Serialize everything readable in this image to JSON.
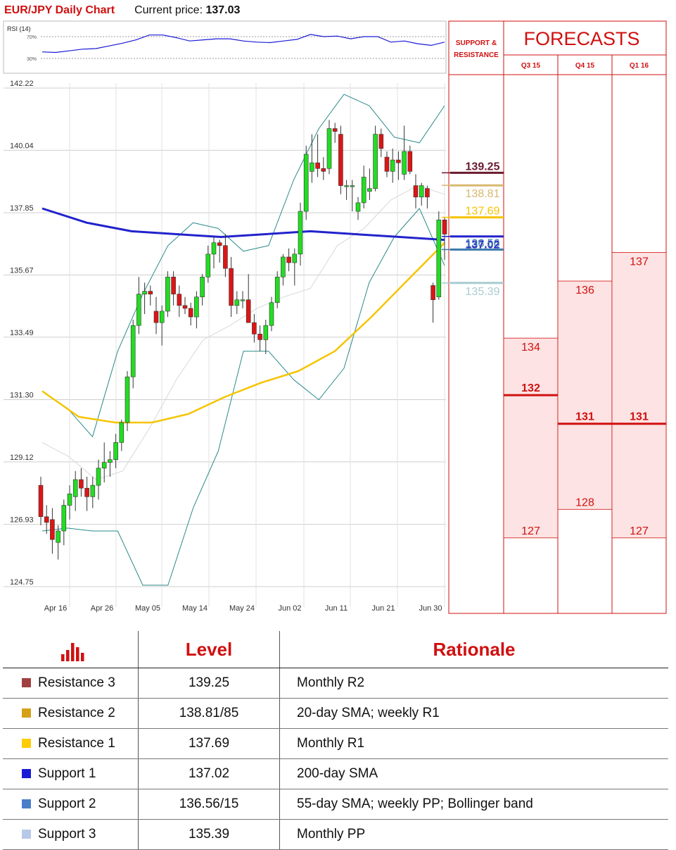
{
  "header": {
    "title": "EUR/JPY Daily Chart",
    "price_label": "Current price:",
    "price_value": "137.03"
  },
  "chart_data": [
    {
      "type": "line",
      "title": "RSI (14)",
      "yticks": [
        "70%",
        "30%"
      ],
      "series": [
        {
          "values": [
            42,
            41,
            44,
            47,
            48,
            53,
            58,
            64,
            73,
            73,
            68,
            62,
            64,
            66,
            66,
            62,
            60,
            59,
            62,
            65,
            74,
            70,
            71,
            66,
            70,
            70,
            60,
            62,
            57,
            54,
            60
          ]
        }
      ]
    },
    {
      "type": "candlestick",
      "title": "EUR/JPY Daily Chart",
      "x_ticks": [
        "Apr 16",
        "Apr 26",
        "May 05",
        "May 14",
        "May 24",
        "Jun 02",
        "Jun 11",
        "Jun 21",
        "Jun 30"
      ],
      "y_ticks": [
        "142.22",
        "140.04",
        "137.85",
        "135.67",
        "133.49",
        "131.30",
        "129.12",
        "126.93",
        "124.75"
      ],
      "ylim": [
        124.75,
        142.22
      ],
      "candles": [
        {
          "o": 128.3,
          "h": 128.6,
          "l": 126.9,
          "c": 127.2
        },
        {
          "o": 127.2,
          "h": 127.6,
          "l": 126.6,
          "c": 127.0
        },
        {
          "o": 127.1,
          "h": 127.5,
          "l": 125.9,
          "c": 126.4
        },
        {
          "o": 126.3,
          "h": 126.9,
          "l": 125.7,
          "c": 126.7
        },
        {
          "o": 126.7,
          "h": 127.8,
          "l": 126.2,
          "c": 127.6
        },
        {
          "o": 127.6,
          "h": 128.3,
          "l": 127.1,
          "c": 128.0
        },
        {
          "o": 127.9,
          "h": 128.8,
          "l": 127.4,
          "c": 128.5
        },
        {
          "o": 128.5,
          "h": 128.9,
          "l": 127.9,
          "c": 128.2
        },
        {
          "o": 128.2,
          "h": 128.6,
          "l": 127.4,
          "c": 127.9
        },
        {
          "o": 127.9,
          "h": 128.6,
          "l": 127.5,
          "c": 128.3
        },
        {
          "o": 128.3,
          "h": 129.2,
          "l": 127.8,
          "c": 128.9
        },
        {
          "o": 128.9,
          "h": 129.8,
          "l": 128.4,
          "c": 129.1
        },
        {
          "o": 129.1,
          "h": 129.5,
          "l": 128.6,
          "c": 129.2
        },
        {
          "o": 129.2,
          "h": 130.1,
          "l": 128.9,
          "c": 129.8
        },
        {
          "o": 129.8,
          "h": 130.6,
          "l": 129.5,
          "c": 130.5
        },
        {
          "o": 130.5,
          "h": 132.3,
          "l": 130.2,
          "c": 132.1
        },
        {
          "o": 132.1,
          "h": 134.1,
          "l": 131.7,
          "c": 133.9
        },
        {
          "o": 133.9,
          "h": 135.6,
          "l": 133.6,
          "c": 135.0
        },
        {
          "o": 135.0,
          "h": 135.4,
          "l": 134.3,
          "c": 135.1
        },
        {
          "o": 135.1,
          "h": 135.3,
          "l": 134.6,
          "c": 135.0
        },
        {
          "o": 134.4,
          "h": 134.9,
          "l": 133.6,
          "c": 134.0
        },
        {
          "o": 134.0,
          "h": 134.6,
          "l": 133.2,
          "c": 134.4
        },
        {
          "o": 134.4,
          "h": 135.8,
          "l": 134.2,
          "c": 135.6
        },
        {
          "o": 135.6,
          "h": 135.8,
          "l": 134.6,
          "c": 135.0
        },
        {
          "o": 135.0,
          "h": 135.3,
          "l": 134.2,
          "c": 134.6
        },
        {
          "o": 134.6,
          "h": 134.9,
          "l": 134.3,
          "c": 134.5
        },
        {
          "o": 134.5,
          "h": 134.7,
          "l": 133.9,
          "c": 134.2
        },
        {
          "o": 134.2,
          "h": 135.1,
          "l": 133.8,
          "c": 134.9
        },
        {
          "o": 134.9,
          "h": 135.7,
          "l": 134.6,
          "c": 135.6
        },
        {
          "o": 135.6,
          "h": 136.7,
          "l": 135.4,
          "c": 136.4
        },
        {
          "o": 136.4,
          "h": 137.0,
          "l": 135.9,
          "c": 136.8
        },
        {
          "o": 136.8,
          "h": 136.9,
          "l": 136.1,
          "c": 136.7
        },
        {
          "o": 136.7,
          "h": 137.1,
          "l": 135.6,
          "c": 135.9
        },
        {
          "o": 135.9,
          "h": 136.3,
          "l": 134.2,
          "c": 134.6
        },
        {
          "o": 134.6,
          "h": 135.1,
          "l": 134.3,
          "c": 134.8
        },
        {
          "o": 134.8,
          "h": 135.1,
          "l": 134.5,
          "c": 134.8
        },
        {
          "o": 134.8,
          "h": 135.7,
          "l": 134.0,
          "c": 134.0
        },
        {
          "o": 134.0,
          "h": 134.3,
          "l": 133.3,
          "c": 133.6
        },
        {
          "o": 133.6,
          "h": 133.9,
          "l": 133.0,
          "c": 133.4
        },
        {
          "o": 133.4,
          "h": 134.1,
          "l": 132.9,
          "c": 133.9
        },
        {
          "o": 133.9,
          "h": 134.9,
          "l": 133.7,
          "c": 134.7
        },
        {
          "o": 134.7,
          "h": 135.8,
          "l": 134.5,
          "c": 135.6
        },
        {
          "o": 135.6,
          "h": 136.4,
          "l": 135.3,
          "c": 136.3
        },
        {
          "o": 136.3,
          "h": 136.6,
          "l": 135.8,
          "c": 136.1
        },
        {
          "o": 136.1,
          "h": 136.6,
          "l": 135.3,
          "c": 136.4
        },
        {
          "o": 136.4,
          "h": 138.2,
          "l": 136.0,
          "c": 137.9
        },
        {
          "o": 137.9,
          "h": 140.2,
          "l": 137.6,
          "c": 139.9
        },
        {
          "o": 139.3,
          "h": 140.6,
          "l": 138.9,
          "c": 139.6
        },
        {
          "o": 139.6,
          "h": 140.6,
          "l": 139.1,
          "c": 139.4
        },
        {
          "o": 139.4,
          "h": 139.8,
          "l": 139.0,
          "c": 139.3
        },
        {
          "o": 139.4,
          "h": 141.1,
          "l": 139.2,
          "c": 140.8
        },
        {
          "o": 140.8,
          "h": 141.0,
          "l": 140.3,
          "c": 140.7
        },
        {
          "o": 140.6,
          "h": 140.9,
          "l": 138.5,
          "c": 138.8
        },
        {
          "o": 138.8,
          "h": 139.0,
          "l": 138.3,
          "c": 138.8
        },
        {
          "o": 138.8,
          "h": 139.0,
          "l": 137.9,
          "c": 138.8
        },
        {
          "o": 137.9,
          "h": 138.4,
          "l": 137.6,
          "c": 138.2
        },
        {
          "o": 138.2,
          "h": 139.5,
          "l": 138.0,
          "c": 139.1
        },
        {
          "o": 138.6,
          "h": 139.4,
          "l": 138.3,
          "c": 138.7
        },
        {
          "o": 138.7,
          "h": 140.9,
          "l": 138.6,
          "c": 140.6
        },
        {
          "o": 140.6,
          "h": 140.8,
          "l": 139.8,
          "c": 140.1
        },
        {
          "o": 139.8,
          "h": 140.0,
          "l": 139.1,
          "c": 139.3
        },
        {
          "o": 139.3,
          "h": 140.1,
          "l": 138.9,
          "c": 139.7
        },
        {
          "o": 139.7,
          "h": 140.0,
          "l": 139.0,
          "c": 139.6
        },
        {
          "o": 139.2,
          "h": 140.9,
          "l": 139.0,
          "c": 140.0
        },
        {
          "o": 140.0,
          "h": 140.2,
          "l": 139.2,
          "c": 139.3
        },
        {
          "o": 138.8,
          "h": 139.2,
          "l": 138.0,
          "c": 138.4
        },
        {
          "o": 138.4,
          "h": 138.9,
          "l": 138.1,
          "c": 138.8
        },
        {
          "o": 138.7,
          "h": 138.8,
          "l": 138.0,
          "c": 138.4
        },
        {
          "o": 135.3,
          "h": 135.4,
          "l": 134.0,
          "c": 134.8
        },
        {
          "o": 134.9,
          "h": 137.9,
          "l": 134.8,
          "c": 137.6
        },
        {
          "o": 137.6,
          "h": 137.7,
          "l": 136.2,
          "c": 137.1
        }
      ],
      "overlays": [
        {
          "name": "200-day SMA",
          "color": "#2222cc",
          "values": [
            138.0,
            137.5,
            137.2,
            137.1,
            137.0,
            137.1,
            137.2,
            137.1,
            137.0,
            136.9
          ]
        },
        {
          "name": "55-day SMA",
          "color": "#f5c400",
          "values": [
            131.6,
            130.7,
            130.5,
            130.5,
            130.8,
            131.4,
            131.9,
            132.3,
            133.0,
            134.2,
            135.5,
            136.8
          ]
        },
        {
          "name": "Bollinger upper",
          "color": "#2a8a8a",
          "values": [
            131.6,
            131.0,
            130.0,
            133.0,
            135.0,
            136.7,
            137.5,
            137.3,
            136.5,
            136.7,
            139.0,
            140.8,
            142.0,
            141.6,
            140.5,
            140.3,
            141.6
          ]
        },
        {
          "name": "Bollinger lower",
          "color": "#2a8a8a",
          "values": [
            126.7,
            126.8,
            126.7,
            126.7,
            124.8,
            124.8,
            127.5,
            129.5,
            133.0,
            133.0,
            132.0,
            131.3,
            132.4,
            135.4,
            137.0,
            138.0,
            136.0
          ]
        },
        {
          "name": "20-day SMA",
          "color": "#d8d8d8",
          "values": [
            129.8,
            129.3,
            128.5,
            128.8,
            130.3,
            132.0,
            133.4,
            133.9,
            134.5,
            134.9,
            135.2,
            136.7,
            137.3,
            138.3,
            138.8,
            138.5
          ]
        }
      ]
    },
    {
      "type": "bar",
      "title": "FORECASTS",
      "categories": [
        "Q3 15",
        "Q4 15",
        "Q1 16"
      ],
      "ranges": [
        {
          "high": 134,
          "mid": 132,
          "low": 127
        },
        {
          "high": 136,
          "mid": 131,
          "low": 128
        },
        {
          "high": 137,
          "mid": 131,
          "low": 127
        }
      ]
    }
  ],
  "sr_panel": {
    "title_line1": "SUPPORT &",
    "title_line2": "RESISTANCE",
    "levels": [
      {
        "label": "139.25",
        "value": 139.25,
        "color": "#6b1a2e"
      },
      {
        "label": "138.81",
        "value": 138.81,
        "color": "#d8b870"
      },
      {
        "label": "137.69",
        "value": 137.69,
        "color": "#f5c400"
      },
      {
        "label": "137.02",
        "value": 137.02,
        "color": "#2222cc"
      },
      {
        "label": "136.56",
        "value": 136.56,
        "color": "#3a7aaa"
      },
      {
        "label": "135.39",
        "value": 135.39,
        "color": "#a8ccd0"
      }
    ]
  },
  "levels_table": {
    "headers": {
      "level": "Level",
      "rationale": "Rationale"
    },
    "rows": [
      {
        "name": "Resistance 3",
        "value": "139.25",
        "rationale": "Monthly R2",
        "color": "#a04040"
      },
      {
        "name": "Resistance 2",
        "value": "138.81/85",
        "rationale": "20-day SMA; weekly R1",
        "color": "#d4a017"
      },
      {
        "name": "Resistance 1",
        "value": "137.69",
        "rationale": "Monthly R1",
        "color": "#ffcc00"
      },
      {
        "name": "Support 1",
        "value": "137.02",
        "rationale": "200-day SMA",
        "color": "#1a1ad6"
      },
      {
        "name": "Support 2",
        "value": "136.56/15",
        "rationale": "55-day SMA; weekly PP; Bollinger band",
        "color": "#4a7ec8"
      },
      {
        "name": "Support 3",
        "value": "135.39",
        "rationale": "Monthly PP",
        "color": "#b8c8e8"
      }
    ]
  }
}
